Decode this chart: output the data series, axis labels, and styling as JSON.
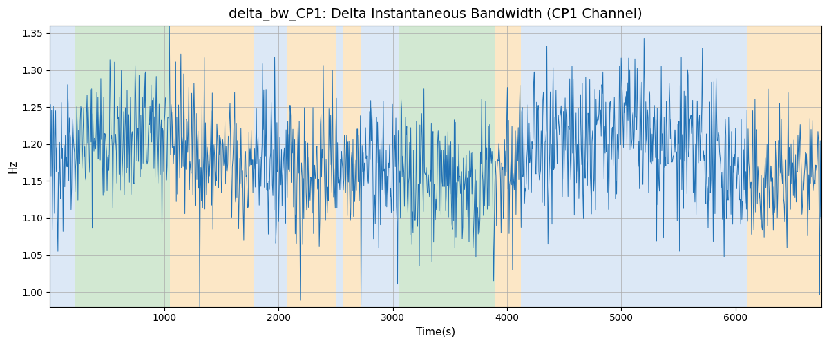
{
  "title": "delta_bw_CP1: Delta Instantaneous Bandwidth (CP1 Channel)",
  "xlabel": "Time(s)",
  "ylabel": "Hz",
  "xlim": [
    0,
    6750
  ],
  "ylim": [
    0.98,
    1.36
  ],
  "yticks": [
    1.0,
    1.05,
    1.1,
    1.15,
    1.2,
    1.25,
    1.3,
    1.35
  ],
  "xticks": [
    1000,
    2000,
    3000,
    4000,
    5000,
    6000
  ],
  "line_color": "#2171b5",
  "line_width": 0.7,
  "grid_color": "#aaaaaa",
  "regions": [
    {
      "xmin": 0,
      "xmax": 220,
      "color": "#c6d9f0",
      "alpha": 0.6
    },
    {
      "xmin": 220,
      "xmax": 1050,
      "color": "#b5d9b5",
      "alpha": 0.6
    },
    {
      "xmin": 1050,
      "xmax": 1780,
      "color": "#fad7a0",
      "alpha": 0.6
    },
    {
      "xmin": 1780,
      "xmax": 2080,
      "color": "#c6d9f0",
      "alpha": 0.6
    },
    {
      "xmin": 2080,
      "xmax": 2500,
      "color": "#fad7a0",
      "alpha": 0.6
    },
    {
      "xmin": 2500,
      "xmax": 2560,
      "color": "#c6d9f0",
      "alpha": 0.6
    },
    {
      "xmin": 2560,
      "xmax": 2720,
      "color": "#fad7a0",
      "alpha": 0.6
    },
    {
      "xmin": 2720,
      "xmax": 3050,
      "color": "#c6d9f0",
      "alpha": 0.6
    },
    {
      "xmin": 3050,
      "xmax": 3900,
      "color": "#b5d9b5",
      "alpha": 0.6
    },
    {
      "xmin": 3900,
      "xmax": 4120,
      "color": "#fad7a0",
      "alpha": 0.6
    },
    {
      "xmin": 4120,
      "xmax": 4360,
      "color": "#c6d9f0",
      "alpha": 0.6
    },
    {
      "xmin": 4360,
      "xmax": 6100,
      "color": "#c6d9f0",
      "alpha": 0.6
    },
    {
      "xmin": 6100,
      "xmax": 6750,
      "color": "#fad7a0",
      "alpha": 0.6
    }
  ],
  "seed": 42,
  "n_points": 1350,
  "title_fontsize": 14,
  "figsize": [
    12.0,
    5.0
  ],
  "dpi": 100
}
